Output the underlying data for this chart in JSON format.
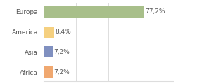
{
  "categories": [
    "Africa",
    "Asia",
    "America",
    "Europa"
  ],
  "values": [
    7.2,
    7.2,
    8.4,
    77.2
  ],
  "labels": [
    "7,2%",
    "7,2%",
    "8,4%",
    "77,2%"
  ],
  "bar_colors": [
    "#f0a870",
    "#8090c0",
    "#f5d080",
    "#a8bf8a"
  ],
  "background_color": "#ffffff",
  "xlim": [
    0,
    100
  ],
  "label_fontsize": 6.5,
  "tick_fontsize": 6.5,
  "bar_height": 0.55,
  "grid_color": "#dddddd",
  "text_color": "#555555"
}
